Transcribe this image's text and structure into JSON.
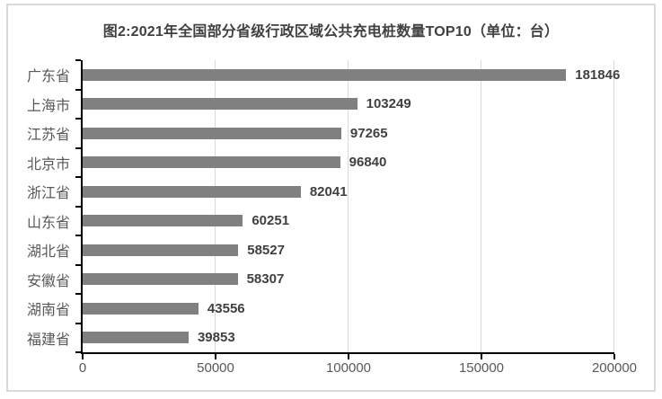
{
  "chart_data": {
    "type": "bar",
    "orientation": "horizontal",
    "title": "图2:2021年全国部分省级行政区域公共充电桩数量TOP10（单位：台）",
    "categories": [
      "广东省",
      "上海市",
      "江苏省",
      "北京市",
      "浙江省",
      "山东省",
      "湖北省",
      "安徽省",
      "湖南省",
      "福建省"
    ],
    "values": [
      181846,
      103249,
      97265,
      96840,
      82041,
      60251,
      58527,
      58307,
      43556,
      39853
    ],
    "value_labels": [
      "181846",
      "103249",
      "97265",
      "96840",
      "82041",
      "60251",
      "58527",
      "58307",
      "43556",
      "39853"
    ],
    "x_ticks": [
      0,
      50000,
      100000,
      150000,
      200000
    ],
    "x_tick_labels": [
      "0",
      "50000",
      "100000",
      "150000",
      "200000"
    ],
    "xlim": [
      0,
      200000
    ],
    "xlabel": "",
    "ylabel": "",
    "grid": "vertical-only",
    "legend": false,
    "data_labels": true,
    "colors": {
      "bar": "#808080",
      "axis": "#000000",
      "gridline": "#d9d9d9",
      "frame_border": "#d9d9d9",
      "title": "#404040",
      "value_label": "#404040",
      "category_label": "#595959",
      "tick_label": "#595959",
      "background": "#ffffff"
    }
  }
}
